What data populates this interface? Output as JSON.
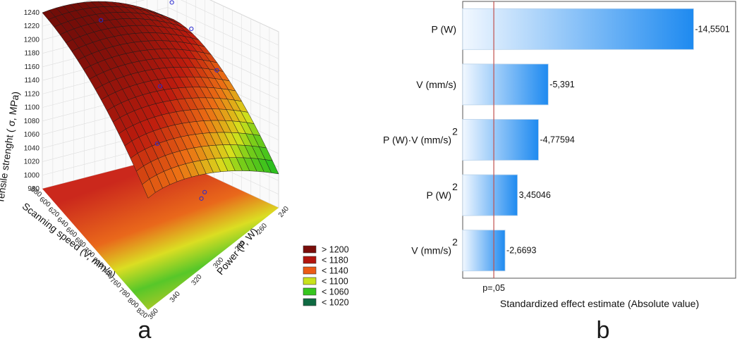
{
  "chart_data": [
    {
      "type": "surface3d",
      "panel_letter": "a",
      "zlabel": "Tensile strenght ( σ, MPa)",
      "xlabel": "Scanning speed (V, mm/s)",
      "ylabel": "Power (P, W)",
      "z_ticks": [
        "980",
        "1000",
        "1020",
        "1040",
        "1060",
        "1080",
        "1100",
        "1120",
        "1140",
        "1160",
        "1180",
        "1200",
        "1220",
        "1240"
      ],
      "speed_ticks": [
        "580",
        "600",
        "620",
        "640",
        "660",
        "680",
        "700",
        "720",
        "740",
        "760",
        "780",
        "800",
        "820"
      ],
      "power_ticks": [
        "240",
        "260",
        "280",
        "300",
        "320",
        "340",
        "360"
      ],
      "legend": [
        {
          "label": "> 1200",
          "color": "#7a0d0a"
        },
        {
          "label": "< 1180",
          "color": "#b3150e"
        },
        {
          "label": "< 1140",
          "color": "#ec5a16"
        },
        {
          "label": "< 1100",
          "color": "#c9e21c"
        },
        {
          "label": "< 1060",
          "color": "#36c61e"
        },
        {
          "label": "< 1020",
          "color": "#0f6a42"
        }
      ]
    },
    {
      "type": "bar",
      "orientation": "horizontal",
      "panel_letter": "b",
      "categories": [
        "P (W)",
        "V (mm/s)",
        "P (W)·V (mm/s)",
        "P (W)",
        "V (mm/s)"
      ],
      "category_sup": [
        "",
        "",
        "2",
        "2",
        "2"
      ],
      "values": [
        14.5501,
        5.391,
        4.77594,
        3.45046,
        2.6693
      ],
      "value_labels": [
        "-14,5501",
        "-5,391",
        "-4,77594",
        "3,45046",
        "-2,6693"
      ],
      "xlabel": "Standardized effect estimate (Absolute value)",
      "threshold_value": 1.96,
      "threshold_label": "p=,05",
      "xlim": [
        0,
        17.2
      ]
    }
  ]
}
